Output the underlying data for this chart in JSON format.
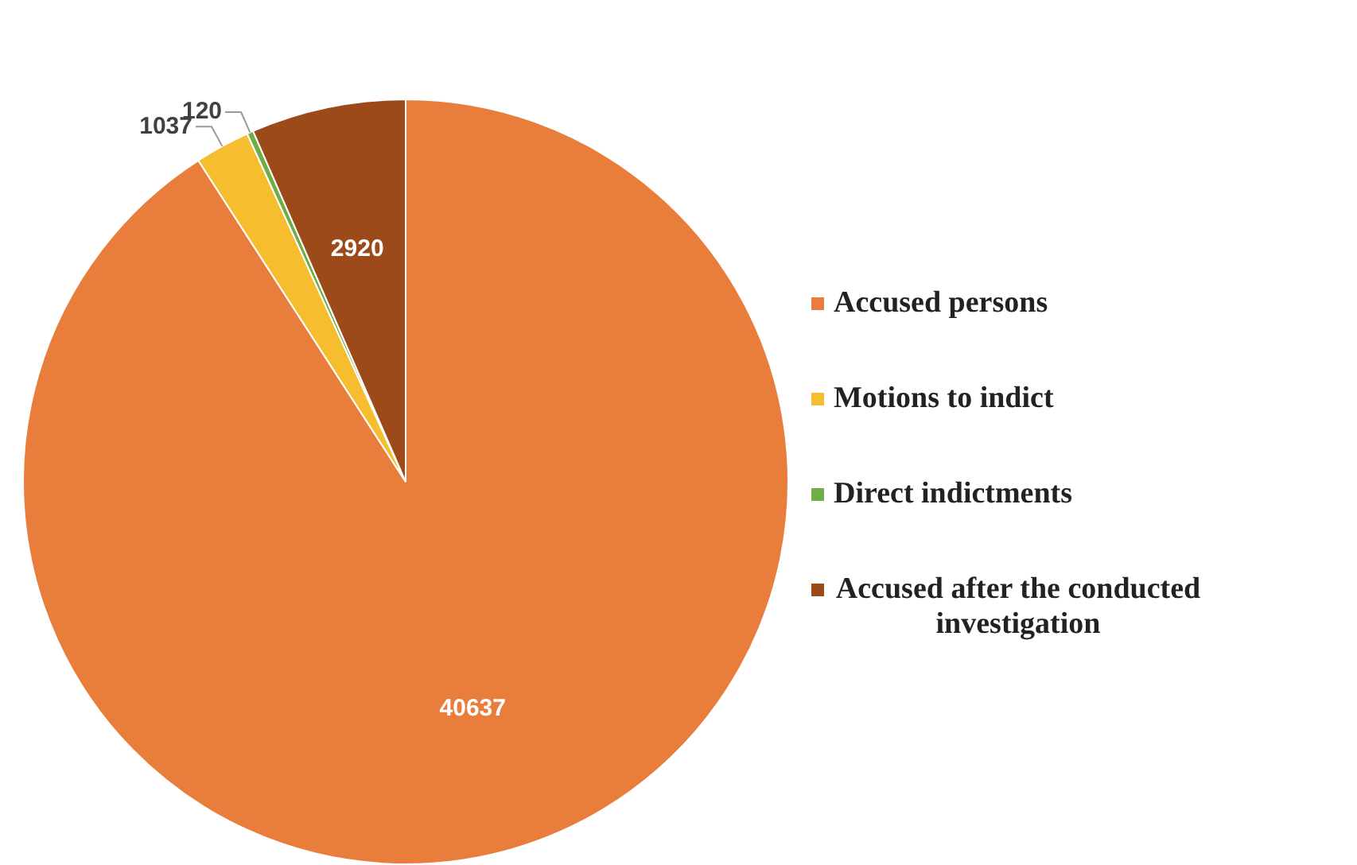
{
  "chart_data": {
    "type": "pie",
    "categories": [
      "Accused persons",
      "Motions to indict",
      "Direct indictments",
      "Accused after the conducted investigation"
    ],
    "values": [
      40637,
      1037,
      120,
      2920
    ],
    "colors": [
      "#e97e3c",
      "#f6be2e",
      "#70ad47",
      "#9c4a19"
    ],
    "data_labels": true,
    "legend": "right"
  }
}
